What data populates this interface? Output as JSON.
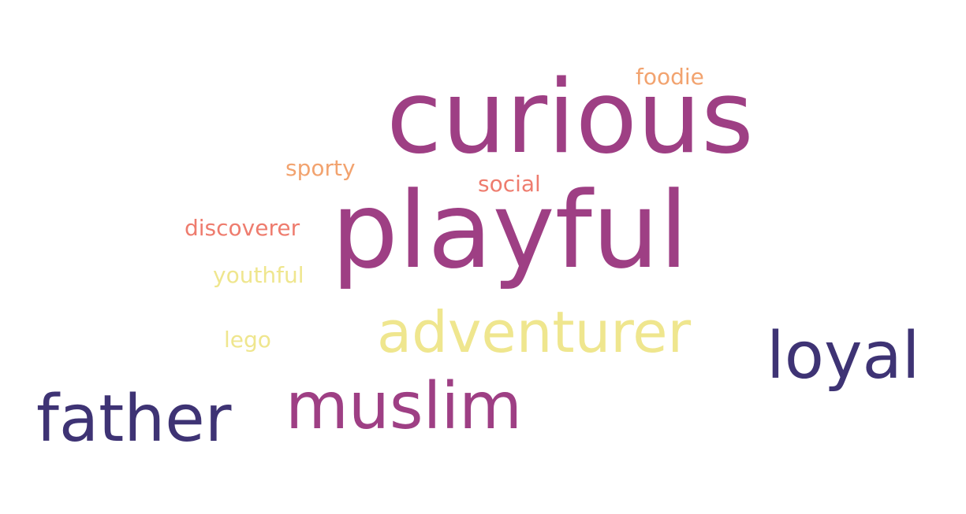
{
  "palette": {
    "magenta": "#9e3f84",
    "navy": "#3e3374",
    "yellow": "#efe68e",
    "salmon": "#ee7c6e",
    "orange": "#f2a36f"
  },
  "words": [
    {
      "text": "curious",
      "color": "#9e3f84"
    },
    {
      "text": "playful",
      "color": "#9e3f84"
    },
    {
      "text": "adventurer",
      "color": "#efe68e"
    },
    {
      "text": "muslim",
      "color": "#9e3f84"
    },
    {
      "text": "loyal",
      "color": "#3e3374"
    },
    {
      "text": "father",
      "color": "#3e3374"
    },
    {
      "text": "foodie",
      "color": "#f2a36f"
    },
    {
      "text": "sporty",
      "color": "#f2a36f"
    },
    {
      "text": "social",
      "color": "#ee7c6e"
    },
    {
      "text": "discoverer",
      "color": "#ee7c6e"
    },
    {
      "text": "youthful",
      "color": "#efe68e"
    },
    {
      "text": "lego",
      "color": "#efe68e"
    }
  ]
}
